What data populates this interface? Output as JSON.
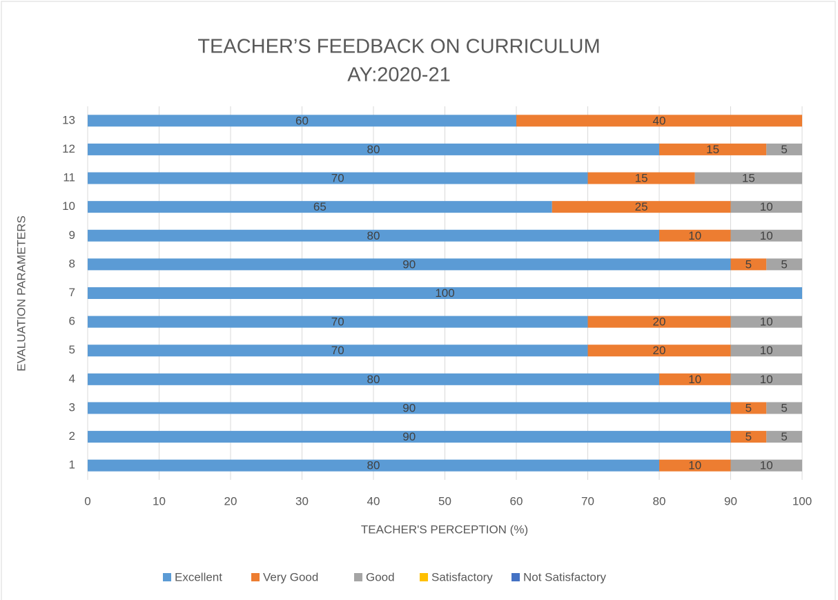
{
  "chart_data": {
    "type": "stacked-bar-horizontal",
    "title": [
      "TEACHER’S FEEDBACK ON CURRICULUM",
      "AY:2020-21"
    ],
    "x_label": "TEACHER'S PERCEPTION (%)",
    "y_label": "EVALUATION PARAMETERS",
    "categories": [
      "1",
      "2",
      "3",
      "4",
      "5",
      "6",
      "7",
      "8",
      "9",
      "10",
      "11",
      "12",
      "13"
    ],
    "series": [
      {
        "name": "Excellent",
        "color": "#5b9bd5",
        "values": [
          80,
          90,
          90,
          80,
          70,
          70,
          100,
          90,
          80,
          65,
          70,
          80,
          60
        ]
      },
      {
        "name": "Very Good",
        "color": "#ed7d31",
        "values": [
          10,
          5,
          5,
          10,
          20,
          20,
          0,
          5,
          10,
          25,
          15,
          15,
          40
        ]
      },
      {
        "name": "Good",
        "color": "#a5a5a5",
        "values": [
          10,
          5,
          5,
          10,
          10,
          10,
          0,
          5,
          10,
          10,
          15,
          5,
          0
        ]
      },
      {
        "name": "Satisfactory",
        "color": "#ffc000",
        "values": [
          0,
          0,
          0,
          0,
          0,
          0,
          0,
          0,
          0,
          0,
          0,
          0,
          0
        ]
      },
      {
        "name": "Not Satisfactory",
        "color": "#4472c4",
        "values": [
          0,
          0,
          0,
          0,
          0,
          0,
          0,
          0,
          0,
          0,
          0,
          0,
          0
        ]
      }
    ],
    "xlim": [
      0,
      100
    ],
    "xticks": [
      0,
      10,
      20,
      30,
      40,
      50,
      60,
      70,
      80,
      90,
      100
    ],
    "grid": true,
    "legend": "bottom"
  }
}
